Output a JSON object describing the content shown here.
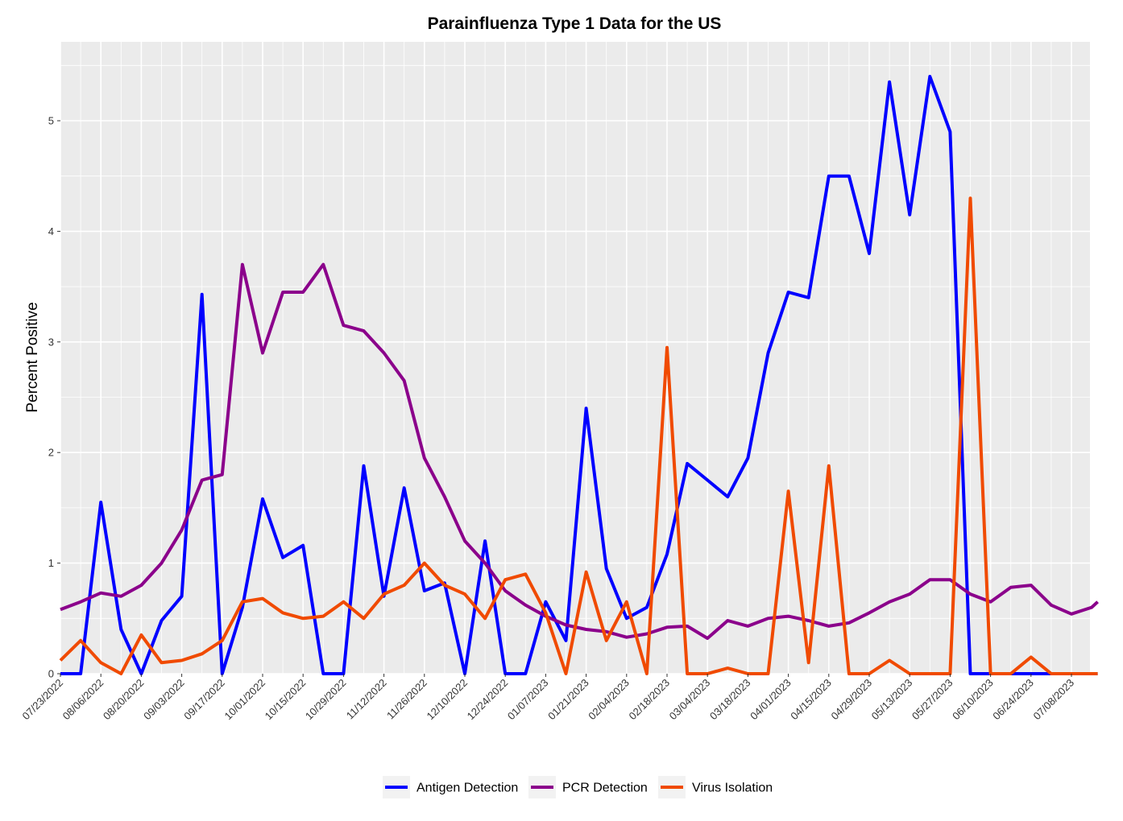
{
  "chart_data": {
    "type": "line",
    "title": "Parainfluenza Type 1 Data for the US",
    "xlabel": "",
    "ylabel": "Percent Positive",
    "ylim": [
      0,
      5.6
    ],
    "yticks": [
      0,
      1,
      2,
      3,
      4,
      5
    ],
    "grid": true,
    "legend_position": "bottom",
    "x_tick_labels": [
      "07/23/2022",
      "08/06/2022",
      "08/20/2022",
      "09/03/2022",
      "09/17/2022",
      "10/01/2022",
      "10/15/2022",
      "10/29/2022",
      "11/12/2022",
      "11/26/2022",
      "12/10/2022",
      "12/24/2022",
      "01/07/2023",
      "01/21/2023",
      "02/04/2023",
      "02/18/2023",
      "03/04/2023",
      "03/18/2023",
      "04/01/2023",
      "04/15/2023",
      "04/29/2023",
      "05/13/2023",
      "05/27/2023",
      "06/10/2023",
      "06/24/2023",
      "07/08/2023"
    ],
    "x_unit": "weeks since 07/23/2022",
    "xlim": [
      0,
      51.3
    ],
    "series": [
      {
        "name": "Antigen Detection",
        "color": "#0000FF",
        "x": [
          0,
          1,
          2,
          3,
          4,
          5,
          6,
          7,
          8,
          9,
          10,
          11,
          12,
          13,
          14,
          15,
          16,
          17,
          18,
          19,
          20,
          21,
          22,
          23,
          24,
          25,
          26,
          27,
          28,
          29,
          30,
          31,
          32,
          33,
          34,
          35,
          36,
          37,
          38,
          39,
          40,
          41,
          42,
          43,
          44,
          45,
          46,
          47,
          48,
          49,
          50,
          51,
          51.3
        ],
        "values": [
          0,
          0,
          1.55,
          0.4,
          0,
          0.48,
          0.7,
          3.43,
          0,
          0.6,
          1.58,
          1.05,
          1.16,
          0,
          0,
          1.88,
          0.7,
          1.68,
          0.75,
          0.82,
          0,
          1.2,
          0,
          0,
          0.65,
          0.3,
          2.4,
          0.95,
          0.5,
          0.6,
          1.08,
          1.9,
          1.75,
          1.6,
          1.95,
          2.9,
          3.45,
          3.4,
          4.5,
          4.5,
          3.8,
          5.35,
          4.15,
          5.4,
          4.9,
          0,
          0,
          0,
          0,
          0,
          0,
          0,
          0
        ]
      },
      {
        "name": "PCR Detection",
        "color": "#8B008B",
        "x": [
          0,
          1,
          2,
          3,
          4,
          5,
          6,
          7,
          8,
          9,
          10,
          11,
          12,
          13,
          14,
          15,
          16,
          17,
          18,
          19,
          20,
          21,
          22,
          23,
          24,
          25,
          26,
          27,
          28,
          29,
          30,
          31,
          32,
          33,
          34,
          35,
          36,
          37,
          38,
          39,
          40,
          41,
          42,
          43,
          44,
          45,
          46,
          47,
          48,
          49,
          50,
          51,
          51.3
        ],
        "values": [
          0.58,
          0.65,
          0.73,
          0.7,
          0.8,
          1.0,
          1.3,
          1.75,
          1.8,
          3.7,
          2.9,
          3.45,
          3.45,
          3.7,
          3.15,
          3.1,
          2.9,
          2.65,
          1.95,
          1.6,
          1.2,
          1.0,
          0.75,
          0.62,
          0.52,
          0.44,
          0.4,
          0.38,
          0.33,
          0.36,
          0.42,
          0.43,
          0.32,
          0.48,
          0.43,
          0.5,
          0.52,
          0.48,
          0.43,
          0.46,
          0.55,
          0.65,
          0.72,
          0.85,
          0.85,
          0.72,
          0.65,
          0.78,
          0.8,
          0.62,
          0.54,
          0.6,
          0.65
        ]
      },
      {
        "name": "Virus Isolation",
        "color": "#F04A00",
        "x": [
          0,
          1,
          2,
          3,
          4,
          5,
          6,
          7,
          8,
          9,
          10,
          11,
          12,
          13,
          14,
          15,
          16,
          17,
          18,
          19,
          20,
          21,
          22,
          23,
          24,
          25,
          26,
          27,
          28,
          29,
          30,
          31,
          32,
          33,
          34,
          35,
          36,
          37,
          38,
          39,
          40,
          41,
          42,
          43,
          44,
          45,
          46,
          47,
          48,
          49,
          50,
          51,
          51.3
        ],
        "values": [
          0.12,
          0.3,
          0.1,
          0.0,
          0.35,
          0.1,
          0.12,
          0.18,
          0.3,
          0.65,
          0.68,
          0.55,
          0.5,
          0.52,
          0.65,
          0.5,
          0.72,
          0.8,
          1.0,
          0.8,
          0.72,
          0.5,
          0.85,
          0.9,
          0.55,
          0.0,
          0.92,
          0.3,
          0.65,
          0.0,
          2.95,
          0.0,
          0.0,
          0.05,
          0.0,
          0.0,
          1.65,
          0.1,
          1.88,
          0.0,
          0.0,
          0.12,
          0.0,
          0.0,
          0.0,
          4.3,
          0.0,
          0.0,
          0.15,
          0.0,
          0.0,
          0.0,
          0.0
        ]
      }
    ]
  }
}
